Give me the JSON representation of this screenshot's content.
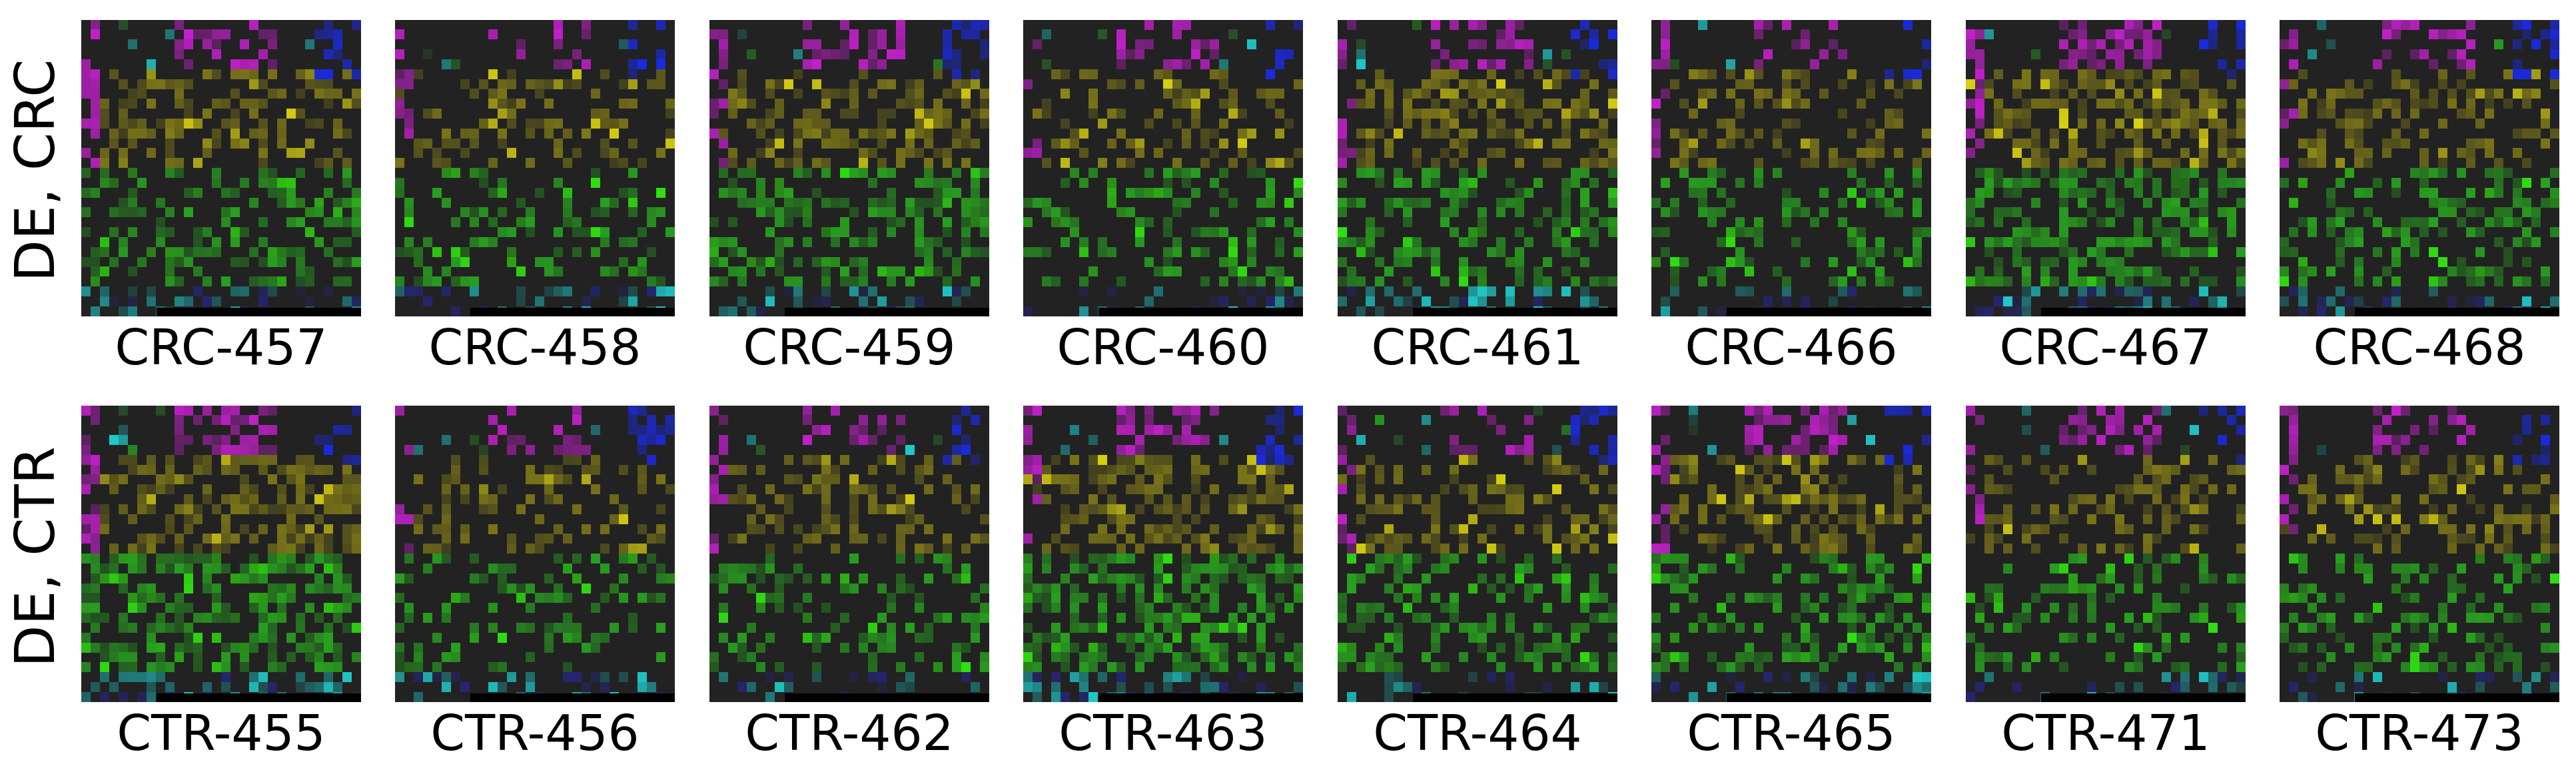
{
  "rows": [
    {
      "label": "DE, CRC",
      "panels": [
        "CRC-457",
        "CRC-458",
        "CRC-459",
        "CRC-460",
        "CRC-461",
        "CRC-466",
        "CRC-467",
        "CRC-468"
      ]
    },
    {
      "label": "DE, CTR",
      "panels": [
        "CTR-455",
        "CTR-456",
        "CTR-462",
        "CTR-463",
        "CTR-464",
        "CTR-465",
        "CTR-471",
        "CTR-473"
      ]
    }
  ],
  "palette": {
    "background": "#222222",
    "magenta": "#c020c8",
    "olive": "#7a7418",
    "yellow": "#d8d010",
    "green": "#28a020",
    "bright_green": "#30e010",
    "cyan": "#20c8c8",
    "teal": "#207878",
    "blue": "#1a2ae0",
    "navy": "#252570",
    "dark_green": "#2a5a28",
    "bar": "#000000"
  }
}
